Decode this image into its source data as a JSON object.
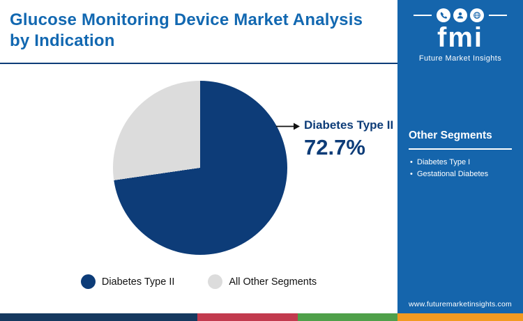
{
  "header": {
    "title": "Glucose Monitoring Device Market Analysis by Indication"
  },
  "chart_data": {
    "type": "pie",
    "title": "Glucose Monitoring Device Market Analysis by Indication",
    "slices": [
      {
        "label": "Diabetes Type II",
        "value": 72.7,
        "color": "#0d3c78"
      },
      {
        "label": "All Other Segments",
        "value": 27.3,
        "color": "#dcdcdc"
      }
    ],
    "annotation": {
      "label": "Diabetes Type II",
      "value_text": "72.7%"
    },
    "legend_position": "bottom",
    "start_angle_deg": 0,
    "direction": "clockwise"
  },
  "sidebar": {
    "background_color": "#1565ac",
    "brand": {
      "name": "fmi",
      "tagline": "Future Market Insights",
      "icons": [
        "phone-icon",
        "support-agent-icon",
        "globe-icon"
      ]
    },
    "other_segments": {
      "heading": "Other Segments",
      "items": [
        "Diabetes Type I",
        "Gestational Diabetes"
      ]
    },
    "website": "www.futuremarketinsights.com"
  },
  "footer": {
    "stripes": [
      {
        "color": "#16395f",
        "width": "37.7%"
      },
      {
        "color": "#c23a4e",
        "width": "19.2%"
      },
      {
        "color": "#4fa04a",
        "width": "19.1%"
      },
      {
        "color": "#f29a21",
        "width": "24%"
      }
    ]
  }
}
